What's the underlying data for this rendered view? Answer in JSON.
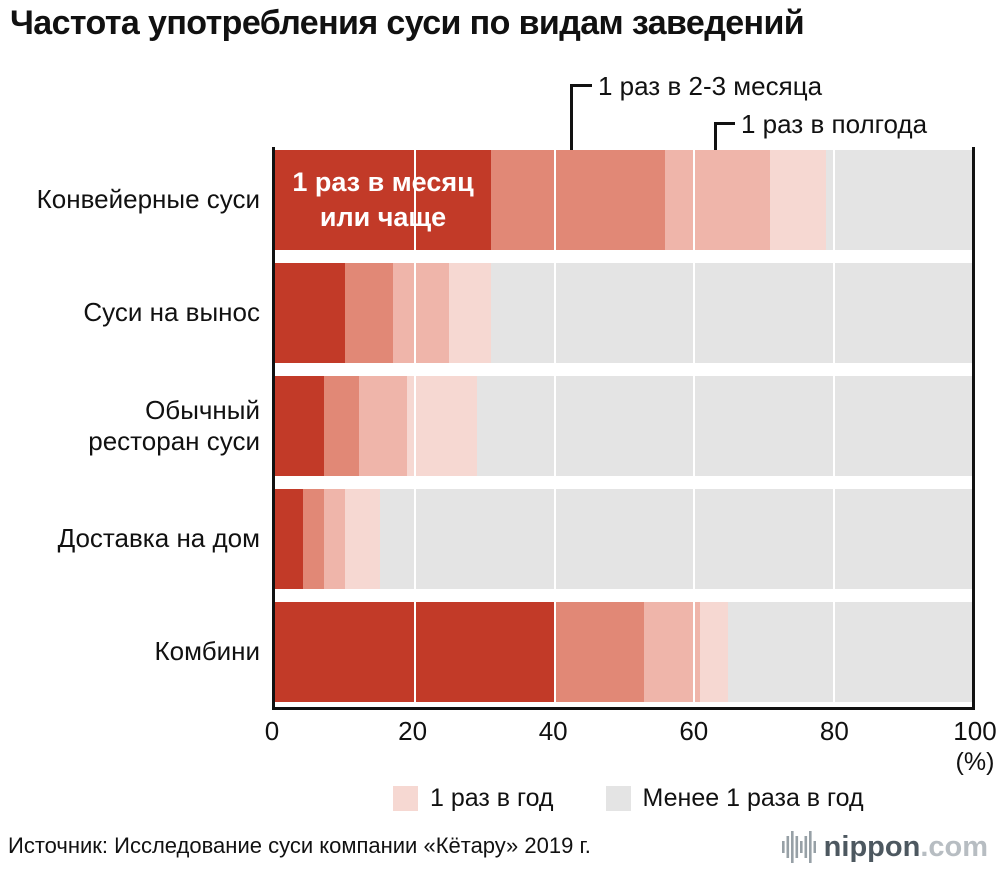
{
  "title": "Частота употребления суси по видам заведений",
  "annotations": {
    "callout_1": "1 раз в 2-3 месяца",
    "callout_2": "1 раз в полгода",
    "inner_bar_label": "1 раз в месяц\nили чаще"
  },
  "chart_data": {
    "type": "bar",
    "orientation": "horizontal",
    "stacked": true,
    "title": "Частота употребления суси по видам заведений",
    "categories": [
      "Конвейерные суси",
      "Суси на вынос",
      "Обычный\nресторан суси",
      "Доставка на дом",
      "Комбини"
    ],
    "series": [
      {
        "name": "1 раз в месяц или чаще",
        "color": "#c23a28",
        "values": [
          31,
          10,
          7,
          4,
          40
        ]
      },
      {
        "name": "1 раз в 2-3 месяца",
        "color": "#e18876",
        "values": [
          25,
          7,
          5,
          3,
          13
        ]
      },
      {
        "name": "1 раз в полгода",
        "color": "#efb5aa",
        "values": [
          15,
          8,
          7,
          3,
          8
        ]
      },
      {
        "name": "1 раз в год",
        "color": "#f6d8d2",
        "values": [
          8,
          6,
          10,
          5,
          4
        ]
      },
      {
        "name": "Менее 1 раза в год",
        "color": "#e4e4e4",
        "values": [
          21,
          69,
          71,
          85,
          35
        ]
      }
    ],
    "xlim": [
      0,
      100
    ],
    "x_ticks": [
      0,
      20,
      40,
      60,
      80,
      100
    ],
    "x_unit": "(%)",
    "gridlines": [
      20,
      40,
      60,
      80
    ],
    "legend_position": "bottom"
  },
  "legend": [
    {
      "label": "1 раз в год",
      "color": "#f6d8d2"
    },
    {
      "label": "Менее 1 раза в год",
      "color": "#e4e4e4"
    }
  ],
  "source": "Источник: Исследование суси компании «Кётару» 2019 г.",
  "logo": {
    "name": "nippon",
    "tld": ".com"
  }
}
